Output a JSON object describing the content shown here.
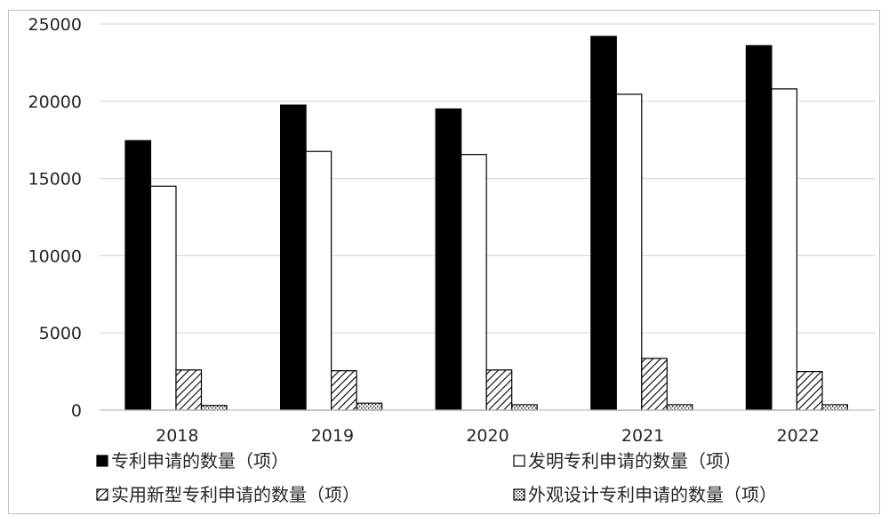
{
  "chart_data": {
    "type": "bar",
    "categories": [
      "2018",
      "2019",
      "2020",
      "2021",
      "2022"
    ],
    "series": [
      {
        "name": "专利申请的数量（项）",
        "values": [
          17450,
          19750,
          19500,
          24200,
          23600
        ],
        "fill": "solid-black"
      },
      {
        "name": "发明专利申请的数量（项）",
        "values": [
          14500,
          16750,
          16550,
          20450,
          20800
        ],
        "fill": "white"
      },
      {
        "name": "实用新型专利申请的数量（项）",
        "values": [
          2600,
          2550,
          2600,
          3350,
          2500
        ],
        "fill": "diagonal-hatch"
      },
      {
        "name": "外观设计专利申请的数量（项）",
        "values": [
          300,
          450,
          350,
          350,
          350
        ],
        "fill": "dotted"
      }
    ],
    "yticks": [
      "0",
      "5000",
      "10000",
      "15000",
      "20000",
      "25000"
    ],
    "ylim": [
      0,
      25000
    ],
    "grid": true,
    "legend": "bottom",
    "colors": {
      "bar_stroke": "#000000",
      "grid": "#d9d9d9",
      "text": "#262626"
    }
  }
}
